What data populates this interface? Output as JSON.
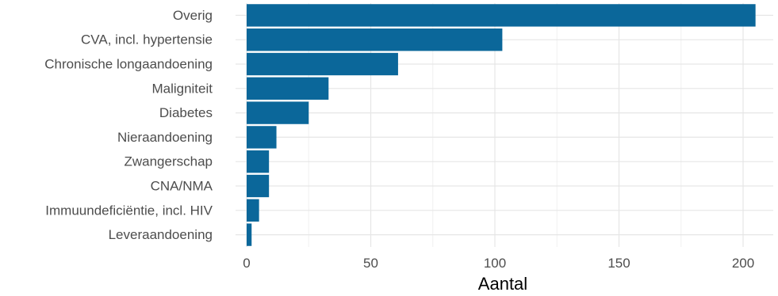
{
  "colors": {
    "bar": "#0b679a"
  },
  "chart_data": {
    "type": "bar",
    "orientation": "horizontal",
    "categories": [
      "Overig",
      "CVA, incl. hypertensie",
      "Chronische longaandoening",
      "Maligniteit",
      "Diabetes",
      "Nieraandoening",
      "Zwangerschap",
      "CNA/NMA",
      "Immuundeficiëntie, incl. HIV",
      "Leveraandoening"
    ],
    "values": [
      205,
      103,
      61,
      33,
      25,
      12,
      9,
      9,
      5,
      2
    ],
    "xlabel": "Aantal",
    "ylabel": "",
    "xlim": [
      0,
      210
    ],
    "xticks": [
      0,
      50,
      100,
      150,
      200
    ],
    "xtick_labels": [
      "0",
      "50",
      "100",
      "150",
      "200"
    ],
    "grid": true
  }
}
